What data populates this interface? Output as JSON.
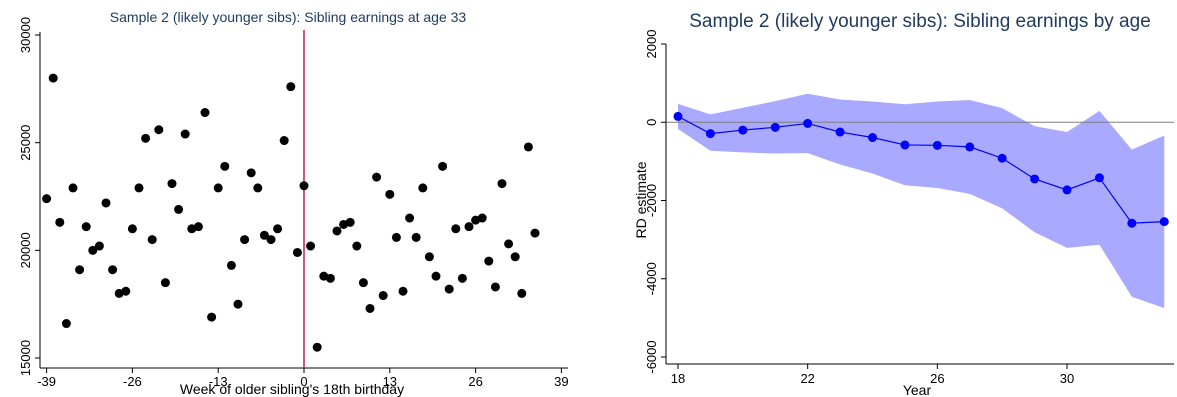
{
  "colors": {
    "scatter_point": "#000000",
    "cutoff_line": "#c0204a",
    "line_series": "#0000ff",
    "ci_band": "#a9a9ff",
    "axis": "#000000",
    "zero_line": "#7f7f7f",
    "title": "#1e3a5f"
  },
  "chart_data": [
    {
      "type": "scatter",
      "title": "Sample 2 (likely younger sibs): Sibling earnings at age 33",
      "xlabel": "Week of older sibling's 18th birthday",
      "ylabel": "",
      "xlim": [
        -40,
        40
      ],
      "ylim": [
        15000,
        30000
      ],
      "xticks": [
        -39,
        -26,
        -13,
        0,
        13,
        26,
        39
      ],
      "yticks": [
        15000,
        20000,
        25000,
        30000
      ],
      "cutoff_x": 0,
      "points": [
        [
          -39,
          22400
        ],
        [
          -38,
          28000
        ],
        [
          -37,
          21300
        ],
        [
          -36,
          16600
        ],
        [
          -35,
          22900
        ],
        [
          -34,
          19100
        ],
        [
          -33,
          21100
        ],
        [
          -32,
          20000
        ],
        [
          -31,
          20200
        ],
        [
          -30,
          22200
        ],
        [
          -29,
          19100
        ],
        [
          -28,
          18000
        ],
        [
          -27,
          18100
        ],
        [
          -26,
          21000
        ],
        [
          -25,
          22900
        ],
        [
          -24,
          25200
        ],
        [
          -23,
          20500
        ],
        [
          -22,
          25600
        ],
        [
          -21,
          18500
        ],
        [
          -20,
          23100
        ],
        [
          -19,
          21900
        ],
        [
          -18,
          25400
        ],
        [
          -17,
          21000
        ],
        [
          -16,
          21100
        ],
        [
          -15,
          26400
        ],
        [
          -14,
          16900
        ],
        [
          -13,
          22900
        ],
        [
          -12,
          23900
        ],
        [
          -11,
          19300
        ],
        [
          -10,
          17500
        ],
        [
          -9,
          20500
        ],
        [
          -8,
          23600
        ],
        [
          -7,
          22900
        ],
        [
          -6,
          20700
        ],
        [
          -5,
          20500
        ],
        [
          -4,
          21000
        ],
        [
          -3,
          25100
        ],
        [
          -2,
          27600
        ],
        [
          -1,
          19900
        ],
        [
          0,
          23000
        ],
        [
          1,
          20200
        ],
        [
          2,
          15500
        ],
        [
          3,
          18800
        ],
        [
          4,
          18700
        ],
        [
          5,
          20900
        ],
        [
          6,
          21200
        ],
        [
          7,
          21300
        ],
        [
          8,
          20200
        ],
        [
          9,
          18500
        ],
        [
          10,
          17300
        ],
        [
          11,
          23400
        ],
        [
          12,
          17900
        ],
        [
          13,
          22600
        ],
        [
          14,
          20600
        ],
        [
          15,
          18100
        ],
        [
          16,
          21500
        ],
        [
          17,
          20600
        ],
        [
          18,
          22900
        ],
        [
          19,
          19700
        ],
        [
          20,
          18800
        ],
        [
          21,
          23900
        ],
        [
          22,
          18200
        ],
        [
          23,
          21000
        ],
        [
          24,
          18700
        ],
        [
          25,
          21100
        ],
        [
          26,
          21400
        ],
        [
          27,
          21500
        ],
        [
          28,
          19500
        ],
        [
          29,
          18300
        ],
        [
          30,
          23100
        ],
        [
          31,
          20300
        ],
        [
          32,
          19700
        ],
        [
          33,
          18000
        ],
        [
          34,
          24800
        ],
        [
          35,
          20800
        ]
      ]
    },
    {
      "type": "line",
      "title": "Sample 2 (likely younger sibs): Sibling earnings by age",
      "xlabel": "Year",
      "ylabel": "RD estimate",
      "xlim": [
        18,
        33.3
      ],
      "ylim": [
        -6000,
        2000
      ],
      "xticks": [
        18,
        22,
        26,
        30
      ],
      "yticks": [
        -6000,
        -4000,
        -2000,
        0,
        2000
      ],
      "x": [
        18,
        19,
        20,
        21,
        22,
        23,
        24,
        25,
        26,
        27,
        28,
        29,
        30,
        31,
        32,
        33
      ],
      "estimate": [
        150,
        -290,
        -200,
        -130,
        -30,
        -250,
        -390,
        -580,
        -590,
        -630,
        -920,
        -1450,
        -1730,
        -1420,
        -2580,
        -2540
      ],
      "ci_upper": [
        470,
        200,
        370,
        540,
        730,
        580,
        530,
        460,
        530,
        570,
        360,
        -100,
        -250,
        290,
        -700,
        -340
      ],
      "ci_lower": [
        -170,
        -730,
        -770,
        -800,
        -790,
        -1080,
        -1310,
        -1610,
        -1680,
        -1830,
        -2200,
        -2810,
        -3210,
        -3130,
        -4460,
        -4750
      ],
      "reference_line_y": 0
    }
  ]
}
